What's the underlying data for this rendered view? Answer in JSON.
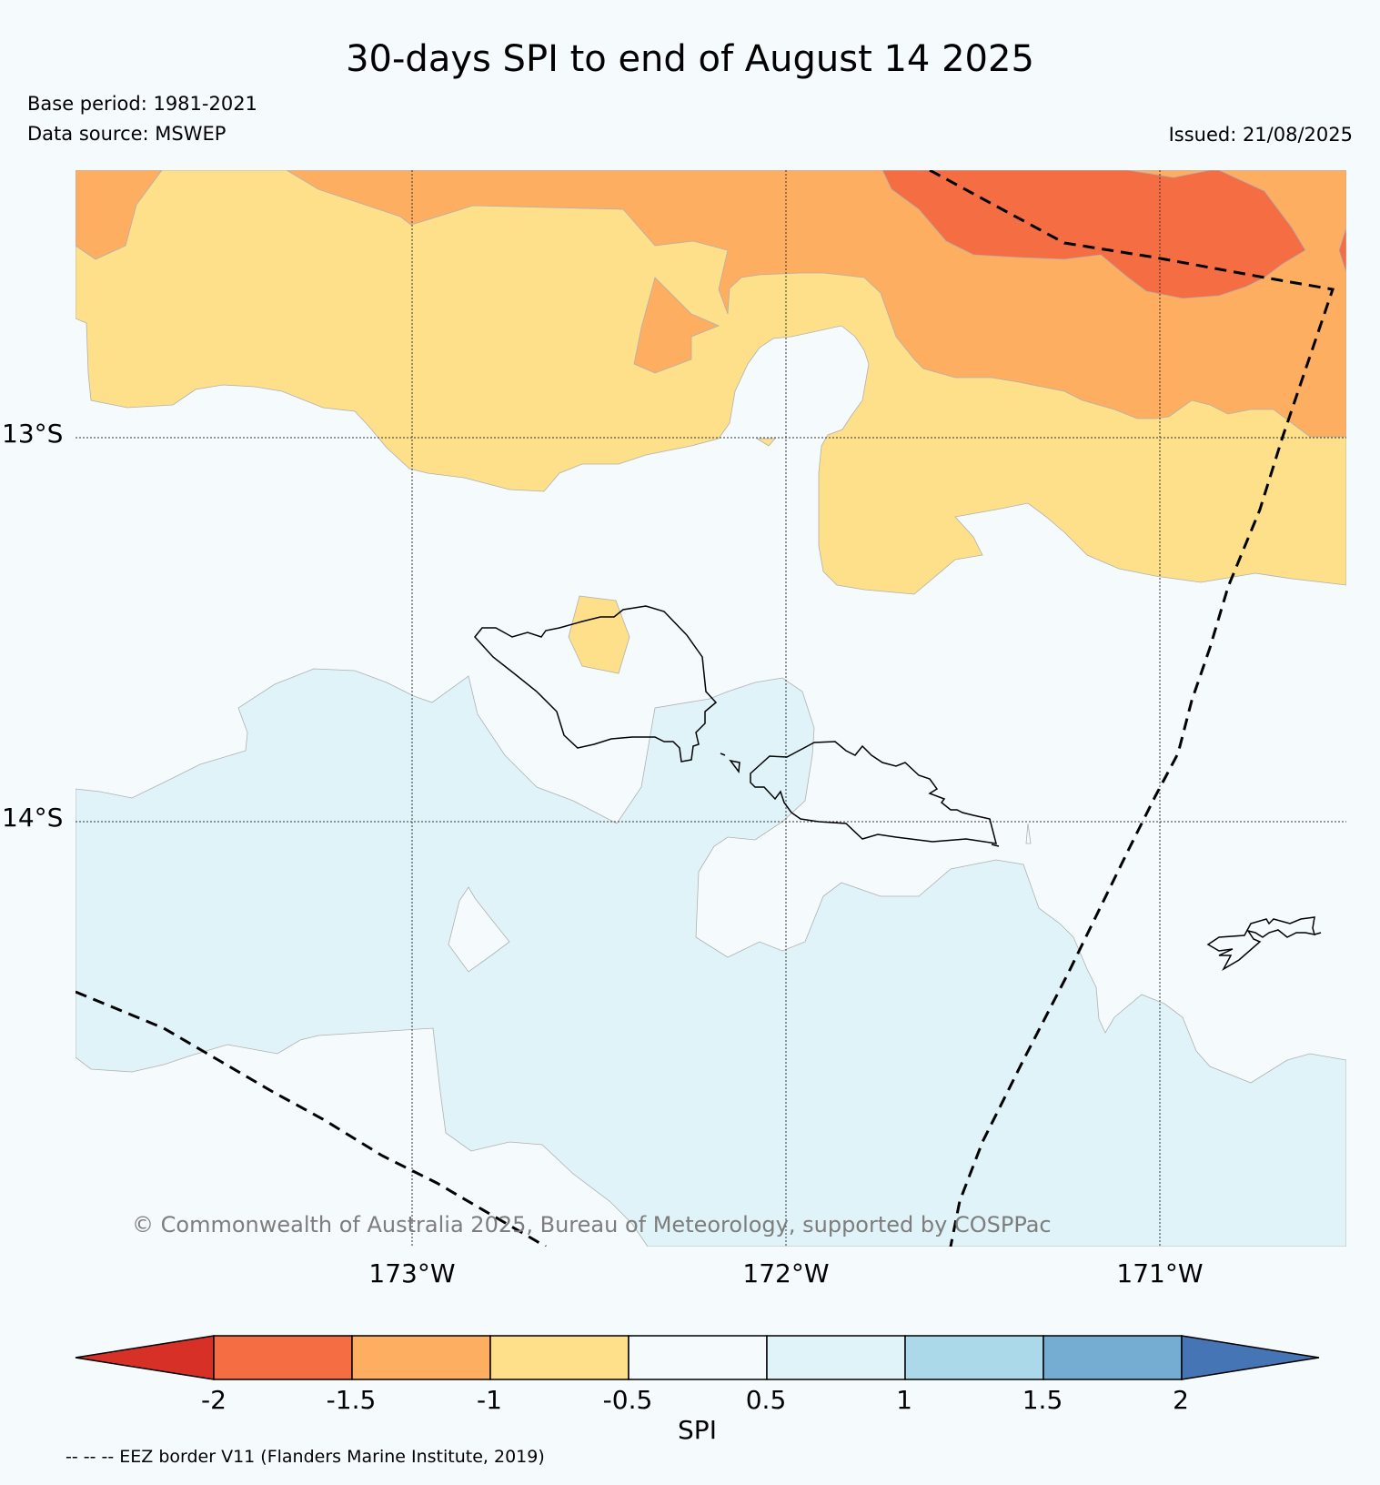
{
  "title": "30-days SPI to end of August 14 2025",
  "base_period": "Base period: 1981-2021",
  "data_source": "Data source: MSWEP",
  "issued": "Issued: 21/08/2025",
  "map": {
    "lat_labels": [
      "13°S",
      "14°S"
    ],
    "lon_labels": [
      "173°W",
      "172°W",
      "171°W"
    ],
    "copyright": "© Commonwealth of Australia 2025, Bureau of Meteorology, supported by COSPPac"
  },
  "colorbar": {
    "label": "SPI",
    "ticks": [
      "-2",
      "-1.5",
      "-1",
      "-0.5",
      "0.5",
      "1",
      "1.5",
      "2"
    ],
    "colors": [
      "#d73027",
      "#f46d43",
      "#fdae61",
      "#fee08b",
      "#f5fafd",
      "#e0f3f8",
      "#abd9e9",
      "#74add1",
      "#4575b4"
    ]
  },
  "legend_note": "-- -- -- EEZ border V11 (Flanders Marine Institute, 2019)"
}
